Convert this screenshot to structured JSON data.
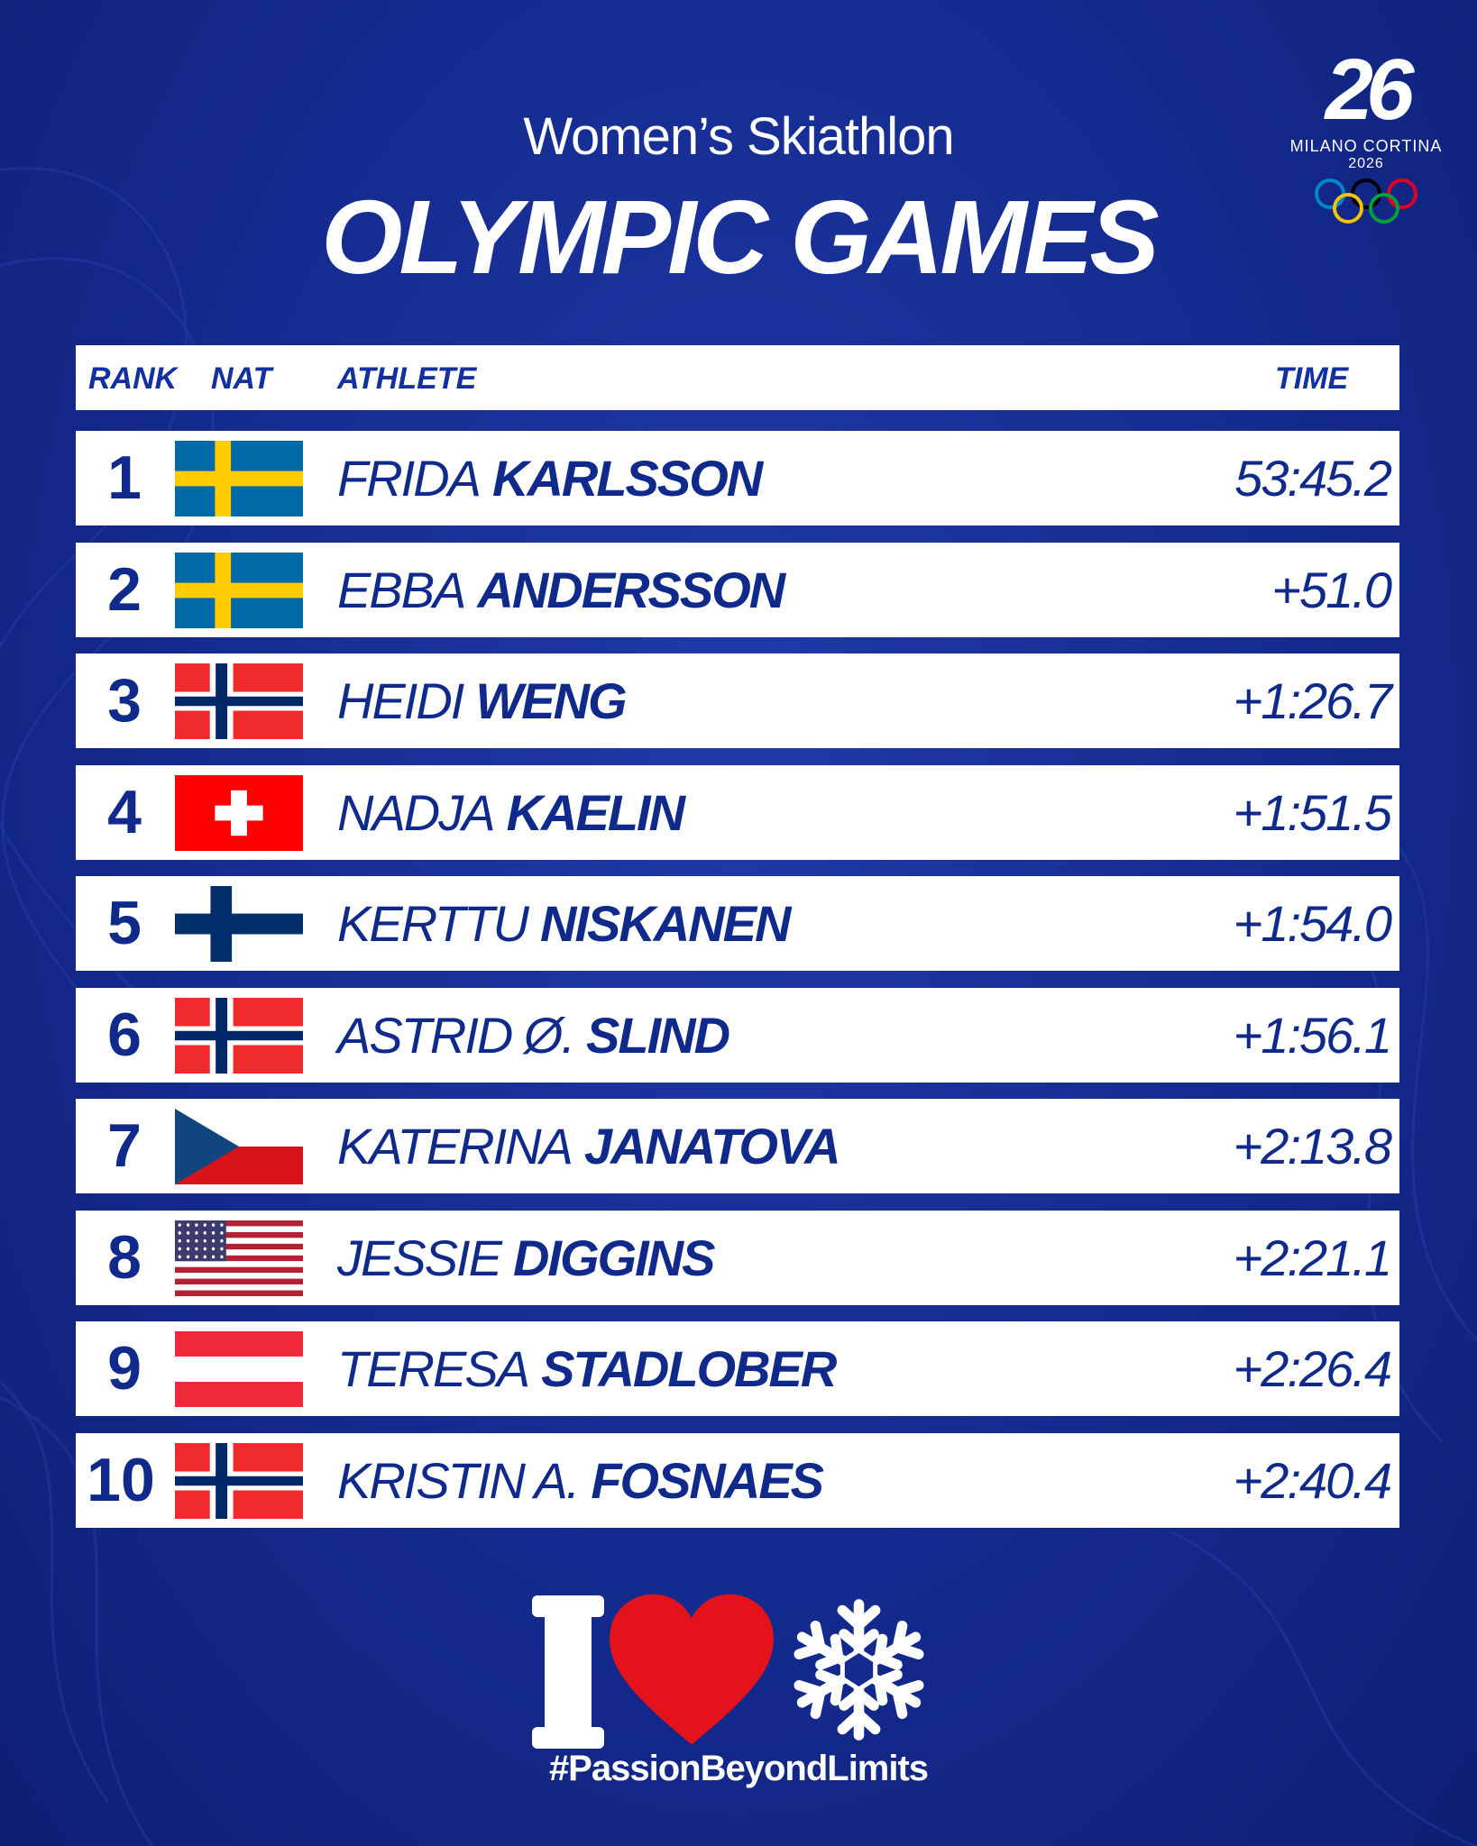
{
  "header": {
    "subtitle": "Women’s Skiathlon",
    "title": "OLYMPIC GAMES"
  },
  "logo": {
    "mark": "26",
    "name": "MILANO CORTINA",
    "year": "2026",
    "ring_colors": [
      "#0085C7",
      "#F4C300",
      "#000000",
      "#009F3D",
      "#DF0024"
    ]
  },
  "table": {
    "headers": {
      "rank": "RANK",
      "nat": "NAT",
      "athlete": "ATHLETE",
      "time": "TIME"
    },
    "rows": [
      {
        "rank": "1",
        "flag": "SWE",
        "first": "FRIDA",
        "last": "KARLSSON",
        "time": "53:45.2"
      },
      {
        "rank": "2",
        "flag": "SWE",
        "first": "EBBA",
        "last": "ANDERSSON",
        "time": "+51.0"
      },
      {
        "rank": "3",
        "flag": "NOR",
        "first": "HEIDI",
        "last": "WENG",
        "time": "+1:26.7"
      },
      {
        "rank": "4",
        "flag": "SUI",
        "first": "NADJA",
        "last": "KAELIN",
        "time": "+1:51.5"
      },
      {
        "rank": "5",
        "flag": "FIN",
        "first": "KERTTU",
        "last": "NISKANEN",
        "time": "+1:54.0"
      },
      {
        "rank": "6",
        "flag": "NOR",
        "first": "ASTRID Ø.",
        "last": "SLIND",
        "time": "+1:56.1"
      },
      {
        "rank": "7",
        "flag": "CZE",
        "first": "KATERINA",
        "last": "JANATOVA",
        "time": "+2:13.8"
      },
      {
        "rank": "8",
        "flag": "USA",
        "first": "JESSIE",
        "last": "DIGGINS",
        "time": "+2:21.1"
      },
      {
        "rank": "9",
        "flag": "AUT",
        "first": "TERESA",
        "last": "STADLOBER",
        "time": "+2:26.4"
      },
      {
        "rank": "10",
        "flag": "NOR",
        "first": "KRISTIN A.",
        "last": "FOSNAES",
        "time": "+2:40.4"
      }
    ]
  },
  "footer": {
    "hashtag": "#PassionBeyondLimits",
    "icons": [
      "letter-i-icon",
      "heart-icon",
      "snowflake-icon"
    ]
  },
  "colors": {
    "background": "#142a8e",
    "text_blue": "#0f2a8a",
    "heart_red": "#e3121b"
  }
}
